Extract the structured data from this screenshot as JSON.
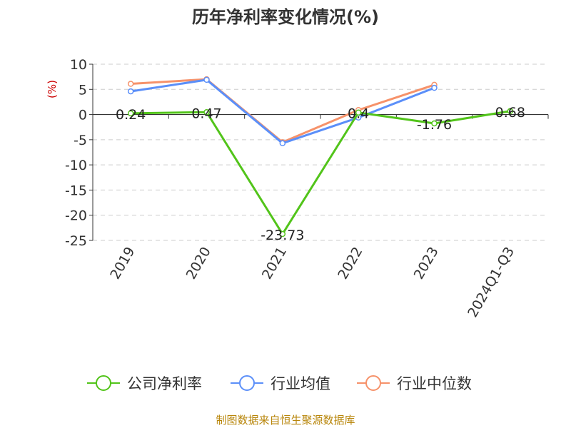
{
  "chart_data": {
    "type": "line",
    "title": "历年净利率变化情况(%)",
    "ylabel": "(%)",
    "categories": [
      "2019",
      "2020",
      "2021",
      "2022",
      "2023",
      "2024Q1-Q3"
    ],
    "ylim": [
      -25,
      10
    ],
    "yticks": [
      10,
      5,
      0,
      -5,
      -10,
      -15,
      -20,
      -25
    ],
    "grid": true,
    "legend_position": "bottom",
    "series": [
      {
        "name": "公司净利率",
        "color": "#52c41a",
        "values": [
          0.24,
          0.47,
          -23.73,
          0.4,
          -1.76,
          0.68
        ],
        "labels": [
          "0.24",
          "0.47",
          "-23.73",
          "0.4",
          "-1.76",
          "0.68"
        ]
      },
      {
        "name": "行业均值",
        "color": "#5b8ff9",
        "values": [
          4.6,
          6.9,
          -5.7,
          -0.6,
          5.3,
          null
        ]
      },
      {
        "name": "行业中位数",
        "color": "#f6926a",
        "values": [
          6.1,
          7.0,
          -5.5,
          0.9,
          5.9,
          null
        ]
      }
    ]
  },
  "footer": {
    "source": "制图数据来自恒生聚源数据库"
  }
}
